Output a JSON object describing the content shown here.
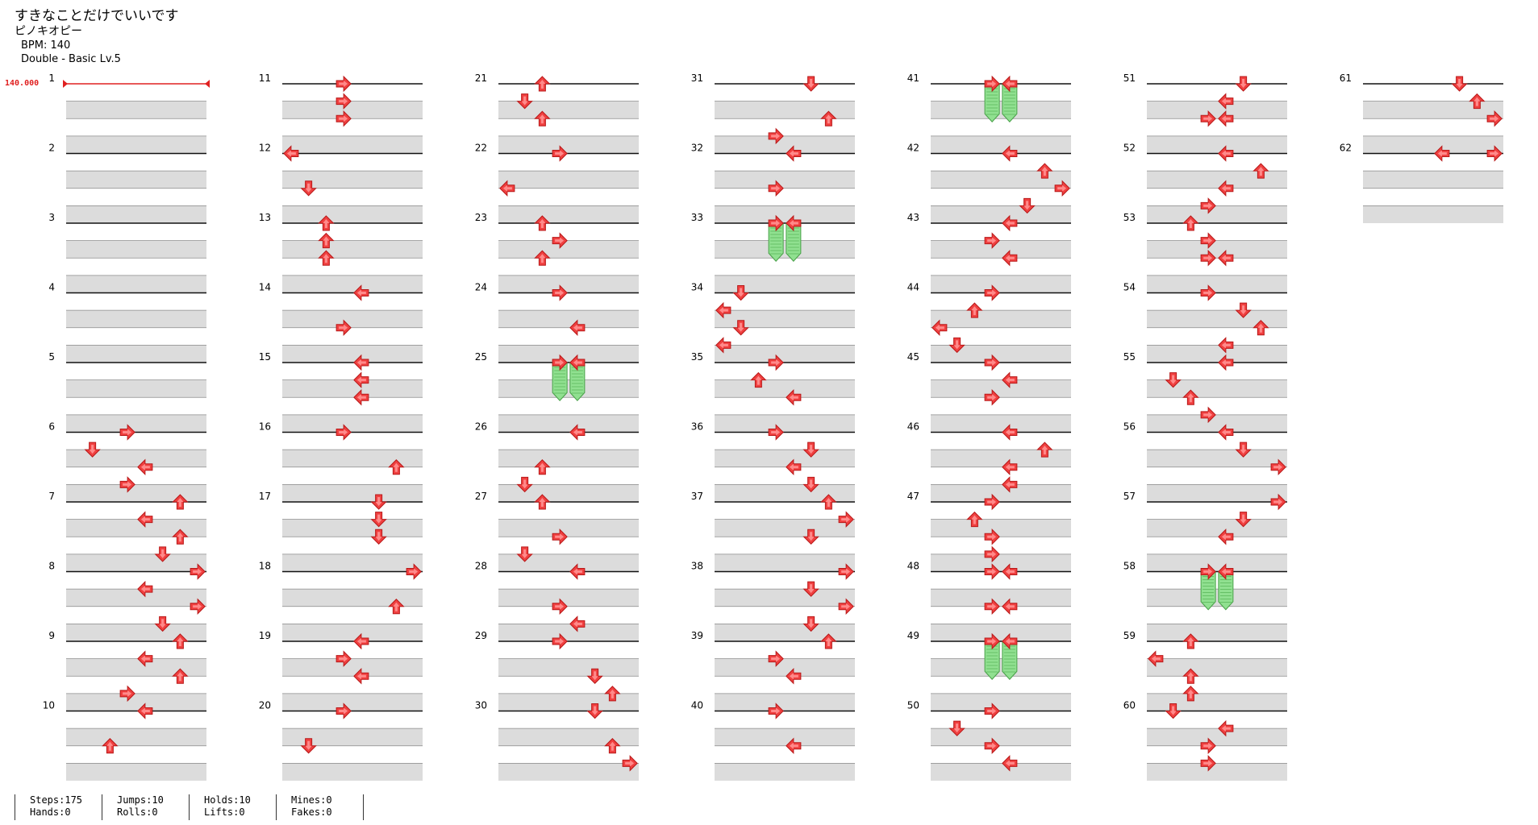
{
  "header": {
    "song_title": "すきなことだけでいいです",
    "artist": "ピノキオピー",
    "bpm": "BPM: 140",
    "difficulty": "Double - Basic  Lv.5"
  },
  "bpm_marker": "140.000",
  "stats": {
    "steps": "Steps:175",
    "hands": "Hands:0",
    "jumps": "Jumps:10",
    "rolls": "Rolls:0",
    "holds": "Holds:10",
    "lifts": "Lifts:0",
    "mines": "Mines:0",
    "fakes": "Fakes:0"
  },
  "chart": {
    "total_measures": 62,
    "measures_per_column": 10,
    "lanes": 8,
    "colors": {
      "arrow": "#f04040",
      "arrow_stroke": "#b81818",
      "hold": "#90e090",
      "hold_stroke": "#48a048",
      "band": "#dcdcdc",
      "line": "#111111",
      "bpm": "#e02020"
    },
    "notes": [
      {
        "m": 6,
        "b": 0,
        "l": 3
      },
      {
        "m": 6,
        "b": 1,
        "l": 1
      },
      {
        "m": 6,
        "b": 2,
        "l": 4
      },
      {
        "m": 6,
        "b": 3,
        "l": 3
      },
      {
        "m": 7,
        "b": 0,
        "l": 6
      },
      {
        "m": 7,
        "b": 1,
        "l": 4
      },
      {
        "m": 7,
        "b": 2,
        "l": 6
      },
      {
        "m": 7,
        "b": 3,
        "l": 5
      },
      {
        "m": 8,
        "b": 0,
        "l": 7
      },
      {
        "m": 8,
        "b": 1,
        "l": 4
      },
      {
        "m": 8,
        "b": 2,
        "l": 7
      },
      {
        "m": 8,
        "b": 3,
        "l": 5
      },
      {
        "m": 9,
        "b": 0,
        "l": 6
      },
      {
        "m": 9,
        "b": 1,
        "l": 4
      },
      {
        "m": 9,
        "b": 2,
        "l": 6
      },
      {
        "m": 9,
        "b": 3,
        "l": 3
      },
      {
        "m": 10,
        "b": 0,
        "l": 4
      },
      {
        "m": 10,
        "b": 2,
        "l": 2
      },
      {
        "m": 11,
        "b": 0,
        "l": 3
      },
      {
        "m": 11,
        "b": 1,
        "l": 3
      },
      {
        "m": 11,
        "b": 2,
        "l": 3
      },
      {
        "m": 12,
        "b": 0,
        "l": 0
      },
      {
        "m": 12,
        "b": 2,
        "l": 1
      },
      {
        "m": 13,
        "b": 0,
        "l": 2
      },
      {
        "m": 13,
        "b": 1,
        "l": 2
      },
      {
        "m": 13,
        "b": 2,
        "l": 2
      },
      {
        "m": 14,
        "b": 0,
        "l": 4
      },
      {
        "m": 14,
        "b": 2,
        "l": 3
      },
      {
        "m": 15,
        "b": 0,
        "l": 4
      },
      {
        "m": 15,
        "b": 1,
        "l": 4
      },
      {
        "m": 15,
        "b": 2,
        "l": 4
      },
      {
        "m": 16,
        "b": 0,
        "l": 3
      },
      {
        "m": 16,
        "b": 2,
        "l": 6
      },
      {
        "m": 17,
        "b": 0,
        "l": 5
      },
      {
        "m": 17,
        "b": 1,
        "l": 5
      },
      {
        "m": 17,
        "b": 2,
        "l": 5
      },
      {
        "m": 18,
        "b": 0,
        "l": 7
      },
      {
        "m": 18,
        "b": 2,
        "l": 6
      },
      {
        "m": 19,
        "b": 0,
        "l": 4
      },
      {
        "m": 19,
        "b": 1,
        "l": 3
      },
      {
        "m": 19,
        "b": 2,
        "l": 4
      },
      {
        "m": 20,
        "b": 0,
        "l": 3
      },
      {
        "m": 20,
        "b": 2,
        "l": 1
      },
      {
        "m": 21,
        "b": 0,
        "l": 2
      },
      {
        "m": 21,
        "b": 1,
        "l": 1
      },
      {
        "m": 21,
        "b": 2,
        "l": 2
      },
      {
        "m": 22,
        "b": 0,
        "l": 3
      },
      {
        "m": 22,
        "b": 2,
        "l": 0
      },
      {
        "m": 23,
        "b": 0,
        "l": 2
      },
      {
        "m": 23,
        "b": 1,
        "l": 3
      },
      {
        "m": 23,
        "b": 2,
        "l": 2
      },
      {
        "m": 24,
        "b": 0,
        "l": 3
      },
      {
        "m": 24,
        "b": 2,
        "l": 4
      },
      {
        "m": 25,
        "b": 0,
        "l": 3,
        "hold": 2
      },
      {
        "m": 25,
        "b": 0,
        "l": 4,
        "hold": 2
      },
      {
        "m": 26,
        "b": 0,
        "l": 4
      },
      {
        "m": 26,
        "b": 2,
        "l": 2
      },
      {
        "m": 26,
        "b": 3,
        "l": 1
      },
      {
        "m": 27,
        "b": 0,
        "l": 2
      },
      {
        "m": 27,
        "b": 2,
        "l": 3
      },
      {
        "m": 27,
        "b": 3,
        "l": 1
      },
      {
        "m": 28,
        "b": 0,
        "l": 4
      },
      {
        "m": 28,
        "b": 2,
        "l": 3
      },
      {
        "m": 28,
        "b": 3,
        "l": 4
      },
      {
        "m": 29,
        "b": 0,
        "l": 3
      },
      {
        "m": 29,
        "b": 2,
        "l": 5
      },
      {
        "m": 29,
        "b": 3,
        "l": 6
      },
      {
        "m": 30,
        "b": 0,
        "l": 5
      },
      {
        "m": 30,
        "b": 2,
        "l": 6
      },
      {
        "m": 30,
        "b": 3,
        "l": 7
      },
      {
        "m": 31,
        "b": 0,
        "l": 5
      },
      {
        "m": 31,
        "b": 2,
        "l": 6
      },
      {
        "m": 31,
        "b": 3,
        "l": 3
      },
      {
        "m": 32,
        "b": 0,
        "l": 4
      },
      {
        "m": 32,
        "b": 2,
        "l": 3
      },
      {
        "m": 33,
        "b": 0,
        "l": 3,
        "hold": 2
      },
      {
        "m": 33,
        "b": 0,
        "l": 4,
        "hold": 2
      },
      {
        "m": 34,
        "b": 0,
        "l": 1
      },
      {
        "m": 34,
        "b": 1,
        "l": 0
      },
      {
        "m": 34,
        "b": 2,
        "l": 1
      },
      {
        "m": 34,
        "b": 3,
        "l": 0
      },
      {
        "m": 35,
        "b": 0,
        "l": 3
      },
      {
        "m": 35,
        "b": 1,
        "l": 2
      },
      {
        "m": 35,
        "b": 2,
        "l": 4
      },
      {
        "m": 36,
        "b": 0,
        "l": 3
      },
      {
        "m": 36,
        "b": 1,
        "l": 5
      },
      {
        "m": 36,
        "b": 2,
        "l": 4
      },
      {
        "m": 36,
        "b": 3,
        "l": 5
      },
      {
        "m": 37,
        "b": 0,
        "l": 6
      },
      {
        "m": 37,
        "b": 1,
        "l": 7
      },
      {
        "m": 37,
        "b": 2,
        "l": 5
      },
      {
        "m": 38,
        "b": 0,
        "l": 7
      },
      {
        "m": 38,
        "b": 1,
        "l": 5
      },
      {
        "m": 38,
        "b": 2,
        "l": 7
      },
      {
        "m": 38,
        "b": 3,
        "l": 5
      },
      {
        "m": 39,
        "b": 0,
        "l": 6
      },
      {
        "m": 39,
        "b": 1,
        "l": 3
      },
      {
        "m": 39,
        "b": 2,
        "l": 4
      },
      {
        "m": 40,
        "b": 0,
        "l": 3
      },
      {
        "m": 40,
        "b": 2,
        "l": 4
      },
      {
        "m": 41,
        "b": 0,
        "l": 3,
        "hold": 2
      },
      {
        "m": 41,
        "b": 0,
        "l": 4,
        "hold": 2
      },
      {
        "m": 42,
        "b": 0,
        "l": 4
      },
      {
        "m": 42,
        "b": 1,
        "l": 6
      },
      {
        "m": 42,
        "b": 2,
        "l": 7
      },
      {
        "m": 42,
        "b": 3,
        "l": 5
      },
      {
        "m": 43,
        "b": 0,
        "l": 4
      },
      {
        "m": 43,
        "b": 1,
        "l": 3
      },
      {
        "m": 43,
        "b": 2,
        "l": 4
      },
      {
        "m": 44,
        "b": 0,
        "l": 3
      },
      {
        "m": 44,
        "b": 1,
        "l": 2
      },
      {
        "m": 44,
        "b": 2,
        "l": 0
      },
      {
        "m": 44,
        "b": 3,
        "l": 1
      },
      {
        "m": 45,
        "b": 0,
        "l": 3
      },
      {
        "m": 45,
        "b": 1,
        "l": 4
      },
      {
        "m": 45,
        "b": 2,
        "l": 3
      },
      {
        "m": 46,
        "b": 0,
        "l": 4
      },
      {
        "m": 46,
        "b": 1,
        "l": 6
      },
      {
        "m": 46,
        "b": 2,
        "l": 4
      },
      {
        "m": 46,
        "b": 3,
        "l": 4
      },
      {
        "m": 47,
        "b": 0,
        "l": 3
      },
      {
        "m": 47,
        "b": 1,
        "l": 2
      },
      {
        "m": 47,
        "b": 2,
        "l": 3
      },
      {
        "m": 47,
        "b": 3,
        "l": 3
      },
      {
        "m": 48,
        "b": 0,
        "l": 3
      },
      {
        "m": 48,
        "b": 0,
        "l": 4
      },
      {
        "m": 48,
        "b": 2,
        "l": 3
      },
      {
        "m": 48,
        "b": 2,
        "l": 4
      },
      {
        "m": 49,
        "b": 0,
        "l": 3,
        "hold": 2
      },
      {
        "m": 49,
        "b": 0,
        "l": 4,
        "hold": 2
      },
      {
        "m": 50,
        "b": 0,
        "l": 3
      },
      {
        "m": 50,
        "b": 1,
        "l": 1
      },
      {
        "m": 50,
        "b": 2,
        "l": 3
      },
      {
        "m": 50,
        "b": 3,
        "l": 4
      },
      {
        "m": 51,
        "b": 0,
        "l": 5
      },
      {
        "m": 51,
        "b": 1,
        "l": 4
      },
      {
        "m": 51,
        "b": 2,
        "l": 3
      },
      {
        "m": 51,
        "b": 2,
        "l": 4
      },
      {
        "m": 52,
        "b": 0,
        "l": 4
      },
      {
        "m": 52,
        "b": 1,
        "l": 6
      },
      {
        "m": 52,
        "b": 2,
        "l": 4
      },
      {
        "m": 52,
        "b": 3,
        "l": 3
      },
      {
        "m": 53,
        "b": 0,
        "l": 2
      },
      {
        "m": 53,
        "b": 1,
        "l": 3
      },
      {
        "m": 53,
        "b": 2,
        "l": 3
      },
      {
        "m": 53,
        "b": 2,
        "l": 4
      },
      {
        "m": 54,
        "b": 0,
        "l": 3
      },
      {
        "m": 54,
        "b": 1,
        "l": 5
      },
      {
        "m": 54,
        "b": 2,
        "l": 6
      },
      {
        "m": 54,
        "b": 3,
        "l": 4
      },
      {
        "m": 55,
        "b": 0,
        "l": 4
      },
      {
        "m": 55,
        "b": 1,
        "l": 1
      },
      {
        "m": 55,
        "b": 2,
        "l": 2
      },
      {
        "m": 55,
        "b": 3,
        "l": 3
      },
      {
        "m": 56,
        "b": 0,
        "l": 4
      },
      {
        "m": 56,
        "b": 1,
        "l": 5
      },
      {
        "m": 56,
        "b": 2,
        "l": 7
      },
      {
        "m": 57,
        "b": 0,
        "l": 7
      },
      {
        "m": 57,
        "b": 1,
        "l": 5
      },
      {
        "m": 57,
        "b": 2,
        "l": 4
      },
      {
        "m": 58,
        "b": 0,
        "l": 3,
        "hold": 2
      },
      {
        "m": 58,
        "b": 0,
        "l": 4,
        "hold": 2
      },
      {
        "m": 59,
        "b": 0,
        "l": 2
      },
      {
        "m": 59,
        "b": 1,
        "l": 0
      },
      {
        "m": 59,
        "b": 2,
        "l": 2
      },
      {
        "m": 59,
        "b": 3,
        "l": 2
      },
      {
        "m": 60,
        "b": 0,
        "l": 1
      },
      {
        "m": 60,
        "b": 1,
        "l": 4
      },
      {
        "m": 60,
        "b": 2,
        "l": 3
      },
      {
        "m": 60,
        "b": 3,
        "l": 3
      },
      {
        "m": 61,
        "b": 0,
        "l": 5
      },
      {
        "m": 61,
        "b": 1,
        "l": 6
      },
      {
        "m": 61,
        "b": 2,
        "l": 7
      },
      {
        "m": 62,
        "b": 0,
        "l": 4
      },
      {
        "m": 62,
        "b": 0,
        "l": 7
      }
    ]
  }
}
